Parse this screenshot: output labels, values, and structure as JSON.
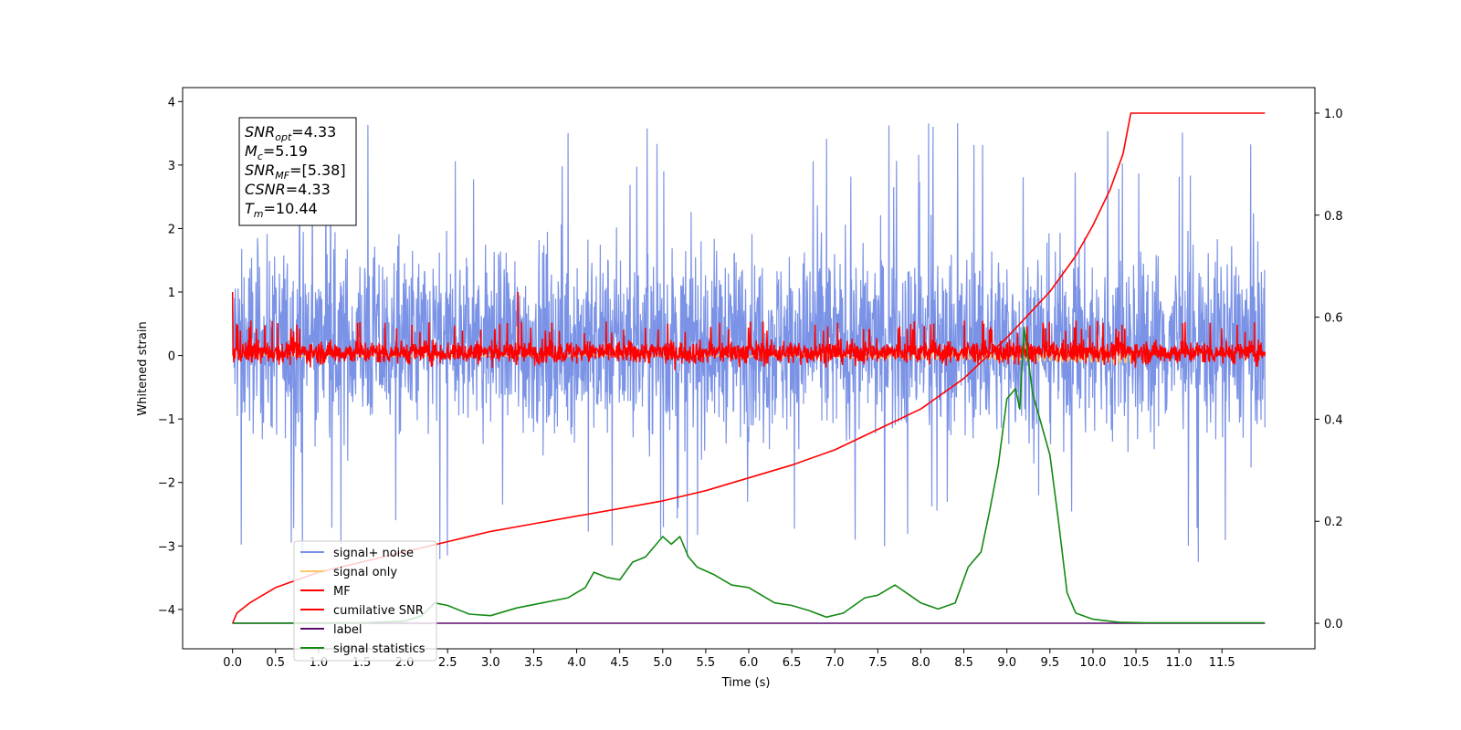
{
  "chart_data": {
    "type": "line",
    "xlabel": "Time (s)",
    "ylabel": "Whitened strain",
    "xlim": [
      -0.58,
      12.58
    ],
    "ylim": [
      -4.62,
      4.22
    ],
    "y2lim": [
      -0.05,
      1.05
    ],
    "x_ticks": [
      0.0,
      0.5,
      1.0,
      1.5,
      2.0,
      2.5,
      3.0,
      3.5,
      4.0,
      4.5,
      5.0,
      5.5,
      6.0,
      6.5,
      7.0,
      7.5,
      8.0,
      8.5,
      9.0,
      9.5,
      10.0,
      10.5,
      11.0,
      11.5
    ],
    "x_tick_labels": [
      "0.0",
      "0.5",
      "1.0",
      "1.5",
      "2.0",
      "2.5",
      "3.0",
      "3.5",
      "4.0",
      "4.5",
      "5.0",
      "5.5",
      "6.0",
      "6.5",
      "7.0",
      "7.5",
      "8.0",
      "8.5",
      "9.0",
      "9.5",
      "10.0",
      "10.5",
      "11.0",
      "11.5"
    ],
    "y_ticks": [
      -4,
      -3,
      -2,
      -1,
      0,
      1,
      2,
      3,
      4
    ],
    "y_tick_labels": [
      "−4",
      "−3",
      "−2",
      "−1",
      "0",
      "1",
      "2",
      "3",
      "4"
    ],
    "y2_ticks": [
      0.0,
      0.2,
      0.4,
      0.6,
      0.8,
      1.0
    ],
    "y2_tick_labels": [
      "0.0",
      "0.2",
      "0.4",
      "0.6",
      "0.8",
      "1.0"
    ],
    "annotation_box": [
      {
        "label": "SNR",
        "sub": "opt",
        "value": "=4.33"
      },
      {
        "label": "M",
        "sub": "c",
        "value": "=5.19"
      },
      {
        "label": "SNR",
        "sub": "MF",
        "value": "=[5.38]"
      },
      {
        "label": "CSNR",
        "sub": "",
        "value": "=4.33"
      },
      {
        "label": "T",
        "sub": "m",
        "value": "=10.44"
      }
    ],
    "legend_position": "lower-left",
    "series": [
      {
        "name": "signal+ noise",
        "color": "#7b93e6",
        "axis": "left",
        "kind": "noise",
        "x_range": [
          0,
          12
        ],
        "band": [
          -1.5,
          1.9
        ],
        "extremes": [
          -4.15,
          3.8
        ]
      },
      {
        "name": "signal only",
        "color": "#ffc66e",
        "axis": "left",
        "kind": "chirp",
        "x_range": [
          0,
          10.44
        ]
      },
      {
        "name": "MF",
        "color": "#ff0000",
        "axis": "left",
        "kind": "noise",
        "x_range": [
          0,
          12
        ],
        "band": [
          -0.3,
          0.45
        ],
        "extremes": [
          -0.3,
          1.0
        ]
      },
      {
        "name": "cumilative SNR",
        "color": "#ff0000",
        "axis": "right",
        "x": [
          0.0,
          0.05,
          0.2,
          0.5,
          1.0,
          1.5,
          2.0,
          2.5,
          3.0,
          3.5,
          4.0,
          4.5,
          5.0,
          5.5,
          6.0,
          6.5,
          7.0,
          7.5,
          8.0,
          8.5,
          9.0,
          9.5,
          9.8,
          10.0,
          10.2,
          10.35,
          10.44,
          12.0
        ],
        "values": [
          0.0,
          0.02,
          0.04,
          0.07,
          0.1,
          0.12,
          0.14,
          0.16,
          0.18,
          0.195,
          0.21,
          0.225,
          0.24,
          0.26,
          0.285,
          0.31,
          0.34,
          0.38,
          0.42,
          0.48,
          0.56,
          0.65,
          0.72,
          0.78,
          0.85,
          0.92,
          1.0,
          1.0
        ]
      },
      {
        "name": "label",
        "color": "#5c0a6e",
        "axis": "right",
        "x": [
          0.0,
          12.0
        ],
        "values": [
          0.0,
          0.0
        ]
      },
      {
        "name": "signal statistics",
        "color": "#138a13",
        "axis": "right",
        "x": [
          0.0,
          1.5,
          2.0,
          2.2,
          2.35,
          2.5,
          2.75,
          3.0,
          3.3,
          3.6,
          3.9,
          4.1,
          4.2,
          4.35,
          4.5,
          4.65,
          4.8,
          5.0,
          5.1,
          5.2,
          5.3,
          5.4,
          5.6,
          5.8,
          6.0,
          6.3,
          6.5,
          6.7,
          6.9,
          7.1,
          7.35,
          7.5,
          7.7,
          8.0,
          8.2,
          8.4,
          8.55,
          8.7,
          8.8,
          8.9,
          9.0,
          9.1,
          9.15,
          9.2,
          9.3,
          9.4,
          9.5,
          9.6,
          9.7,
          9.8,
          10.0,
          10.3,
          10.6,
          12.0
        ],
        "values": [
          0.0,
          0.001,
          0.004,
          0.015,
          0.04,
          0.035,
          0.018,
          0.015,
          0.03,
          0.04,
          0.05,
          0.07,
          0.1,
          0.09,
          0.085,
          0.12,
          0.13,
          0.17,
          0.155,
          0.17,
          0.13,
          0.11,
          0.095,
          0.075,
          0.07,
          0.04,
          0.035,
          0.025,
          0.012,
          0.02,
          0.05,
          0.055,
          0.075,
          0.04,
          0.028,
          0.04,
          0.11,
          0.14,
          0.22,
          0.31,
          0.44,
          0.46,
          0.42,
          0.58,
          0.45,
          0.39,
          0.33,
          0.2,
          0.06,
          0.02,
          0.008,
          0.002,
          0.001,
          0.001
        ]
      }
    ]
  }
}
